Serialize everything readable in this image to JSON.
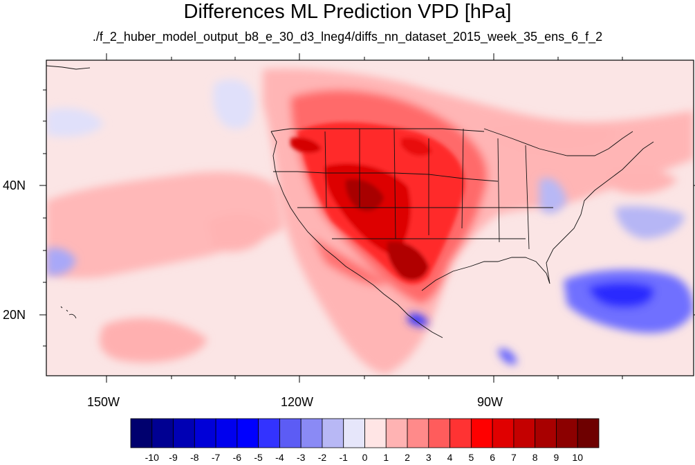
{
  "title": "Differences ML Prediction VPD [hPa]",
  "subtitle": "./f_2_huber_model_output_b8_e_30_d3_lneg4/diffs_nn_dataset_2015_week_35_ens_6_f_2",
  "axes": {
    "x_ticks": [
      "150W",
      "120W",
      "90W"
    ],
    "y_ticks": [
      "40N",
      "20N"
    ],
    "lon_range": [
      -160,
      -60
    ],
    "lat_range": [
      10,
      60
    ]
  },
  "colorbar": {
    "labels": [
      "-10",
      "-9",
      "-8",
      "-7",
      "-6",
      "-5",
      "-4",
      "-3",
      "-2",
      "-1",
      "0",
      "1",
      "2",
      "3",
      "4",
      "5",
      "6",
      "7",
      "8",
      "9",
      "10"
    ],
    "colors": [
      "#00006e",
      "#000092",
      "#0000b4",
      "#0000d8",
      "#0000ee",
      "#0000ff",
      "#3333ff",
      "#5c5cf5",
      "#8a8af5",
      "#b8b8f5",
      "#e6e6fa",
      "#ffe5e5",
      "#ffb3b3",
      "#ff8a8a",
      "#ff5c5c",
      "#ff3333",
      "#ff0000",
      "#e00000",
      "#c40000",
      "#a80000",
      "#8c0000",
      "#6e0000"
    ]
  },
  "colors": {
    "background_field": "#fbe3e3",
    "coastline": "#111111"
  }
}
